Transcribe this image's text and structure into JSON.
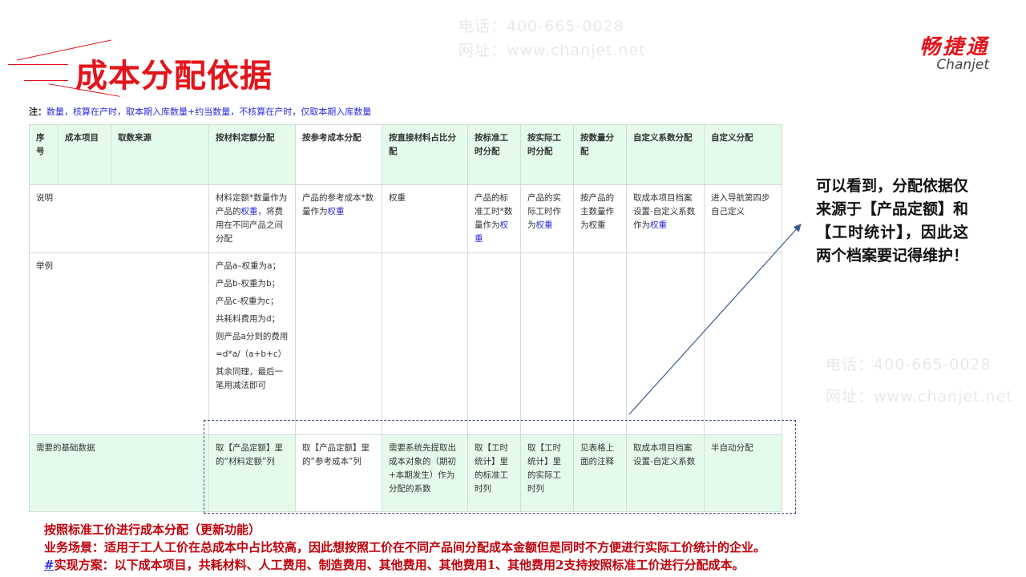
{
  "watermark": {
    "phone": "电话：400-665-0028",
    "site": "网址：www.chanjet.net"
  },
  "title": "成本分配依据",
  "logo": {
    "cn": "畅捷通",
    "en": "Chanjet"
  },
  "note": {
    "prefix": "注：",
    "text": "数量，核算在产时，取本期入库数量+约当数量，不核算在产时，仅取本期入库数量"
  },
  "table": {
    "headers": [
      "序号",
      "成本项目",
      "取数来源",
      "按材料定额分配",
      "按参考成本分配",
      "按直接材料占比分配",
      "按标准工时分配",
      "按实际工时分配",
      "按数量分配",
      "自定义系数分配",
      "自定义分配"
    ],
    "desc_label": "说明",
    "desc": [
      {
        "a": "材料定额*数量作为产品的",
        "hl": "权重",
        "b": "，将费用在不同产品之间分配"
      },
      {
        "a": "产品的参考成本*数量作为",
        "hl": "权重",
        "b": ""
      },
      {
        "a": "权重",
        "hl": "",
        "b": ""
      },
      {
        "a": "产品的标准工时*数量作为",
        "hl": "权重",
        "b": ""
      },
      {
        "a": "产品的实际工时作为",
        "hl": "权重",
        "b": ""
      },
      {
        "a": "按产品的主数量作为权重",
        "hl": "",
        "b": ""
      },
      {
        "a": "取成本项目档案设置-自定义系数作为",
        "hl": "权重",
        "b": ""
      },
      {
        "a": "进入导航第四步自己定义",
        "hl": "",
        "b": ""
      }
    ],
    "example_label": "举例",
    "example_lines": [
      "产品a–权重为a；",
      "产品b-权重为b；",
      "产品c-权重为c；",
      "共耗料费用为d；",
      "则产品a分到的费用",
      "=d*a/（a+b+c）",
      "其余同理，最后一笔用减法即可"
    ],
    "base_label": "需要的基础数据",
    "base": [
      "取【产品定额】里的“材料定额”列",
      "取【产品定额】里的“参考成本”列",
      "需要系统先提取出成本对象的（期初+本期发生）作为分配的系数",
      "取【工时统计】里的标准工时列",
      "取【工时统计】里的实际工时列",
      "见表格上面的注释",
      "取成本项目档案设置-自定义系数",
      "半自动分配"
    ]
  },
  "callout": "可以看到，分配依据仅来源于【产品定额】和【工时统计】，因此这两个档案要记得维护！",
  "bottom": {
    "line1": "按照标准工价进行成本分配（更新功能）",
    "line2": "业务场景：适用于工人工价在总成本中占比较高，因此想按照工价在不同产品间分配成本金额但是同时不方便进行实际工价统计的企业。",
    "hash": "#",
    "line3": "实现方案：以下成本项目，共耗材料、人工费用、制造费用、其他费用、其他费用1、其他费用2支持按照标准工价进行分配成本。"
  },
  "colors": {
    "accent": "#e3141c",
    "link": "#2a2ae0",
    "header_bg": "#e4fbec"
  }
}
